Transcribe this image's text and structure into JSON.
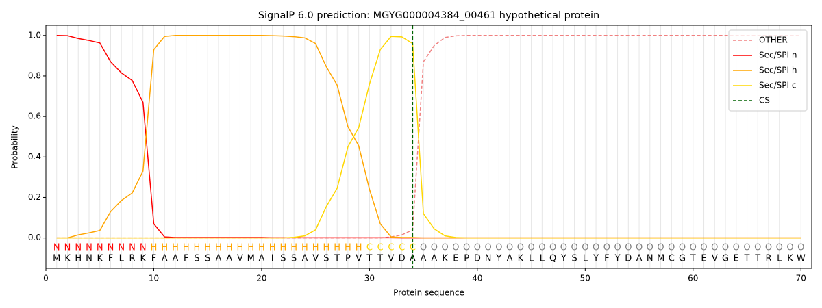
{
  "chart_data": {
    "type": "line",
    "title": "SignalP 6.0 prediction: MGYG000004384_00461 hypothetical protein",
    "xlabel": "Protein sequence",
    "ylabel": "Probability",
    "xlim": [
      0,
      71
    ],
    "ylim": [
      -0.15,
      1.05
    ],
    "xticks": [
      0,
      10,
      20,
      30,
      40,
      50,
      60,
      70
    ],
    "yticks": [
      {
        "value": 0,
        "label": "0.0"
      },
      0.2,
      0.4,
      0.6,
      0.8,
      {
        "value": 1,
        "label": "1.0"
      }
    ],
    "sequence": "MKHNKFLRKFAAFSSAAVMAISSAVSTPVTTVDAAAKEPDNYAKLLQYSLYFYDANMCGTEVGETTRLKW",
    "regions": "NNNNNNNNNHHHHHHHHHHHHHHHHHHHHCCCCCOOOOOOOOOOOOOOOOOOOOOOOOOOOOOOOOOOOO",
    "region_colors": {
      "N": "#ff0000",
      "H": "#ffa500",
      "C": "#ffd700",
      "O": "#808080"
    },
    "legend": "upper right",
    "x": [
      1,
      2,
      3,
      4,
      5,
      6,
      7,
      8,
      9,
      10,
      11,
      12,
      13,
      14,
      15,
      16,
      17,
      18,
      19,
      20,
      21,
      22,
      23,
      24,
      25,
      26,
      27,
      28,
      29,
      30,
      31,
      32,
      33,
      34,
      35,
      36,
      37,
      38,
      39,
      40,
      41,
      42,
      43,
      44,
      45,
      46,
      47,
      48,
      49,
      50,
      51,
      52,
      53,
      54,
      55,
      56,
      57,
      58,
      59,
      60,
      61,
      62,
      63,
      64,
      65,
      66,
      67,
      68,
      69,
      70
    ],
    "series": [
      {
        "name": "OTHER",
        "color": "#f08080",
        "dashed": true,
        "values": [
          0,
          0,
          0,
          0,
          0,
          0,
          0,
          0,
          0,
          0,
          0,
          0,
          0,
          0,
          0,
          0,
          0,
          0,
          0,
          0,
          0,
          0,
          0,
          0,
          0,
          0,
          0,
          0,
          0,
          0,
          0,
          0.005,
          0.015,
          0.04,
          0.87,
          0.95,
          0.99,
          0.998,
          1,
          1,
          1,
          1,
          1,
          1,
          1,
          1,
          1,
          1,
          1,
          1,
          1,
          1,
          1,
          1,
          1,
          1,
          1,
          1,
          1,
          1,
          1,
          1,
          1,
          1,
          1,
          1,
          1,
          1,
          1,
          1
        ]
      },
      {
        "name": "Sec/SPI n",
        "color": "#ff0000",
        "values": [
          1,
          0.999,
          0.985,
          0.975,
          0.963,
          0.87,
          0.815,
          0.778,
          0.67,
          0.07,
          0.005,
          0.002,
          0.002,
          0.002,
          0.002,
          0.002,
          0.002,
          0.002,
          0.002,
          0.002,
          0.001,
          0.001,
          0.001,
          0.001,
          0.001,
          0.001,
          0.001,
          0.001,
          0.001,
          0.001,
          0.001,
          0.001,
          0,
          0,
          0,
          0,
          0,
          0,
          0,
          0,
          0,
          0,
          0,
          0,
          0,
          0,
          0,
          0,
          0,
          0,
          0,
          0,
          0,
          0,
          0,
          0,
          0,
          0,
          0,
          0,
          0,
          0,
          0,
          0,
          0,
          0,
          0,
          0,
          0,
          0
        ]
      },
      {
        "name": "Sec/SPI h",
        "color": "#ffa500",
        "values": [
          0,
          0,
          0.015,
          0.025,
          0.037,
          0.13,
          0.185,
          0.222,
          0.33,
          0.93,
          0.995,
          1,
          1,
          1,
          1,
          1,
          1,
          1,
          1,
          1,
          0.999,
          0.997,
          0.994,
          0.988,
          0.96,
          0.845,
          0.755,
          0.55,
          0.455,
          0.24,
          0.07,
          0.005,
          0.002,
          0.002,
          0,
          0,
          0,
          0,
          0,
          0,
          0,
          0,
          0,
          0,
          0,
          0,
          0,
          0,
          0,
          0,
          0,
          0,
          0,
          0,
          0,
          0,
          0,
          0,
          0,
          0,
          0,
          0,
          0,
          0,
          0,
          0,
          0,
          0,
          0,
          0
        ]
      },
      {
        "name": "Sec/SPI c",
        "color": "#ffd700",
        "values": [
          0,
          0,
          0,
          0,
          0,
          0,
          0,
          0,
          0,
          0,
          0,
          0,
          0,
          0,
          0,
          0,
          0,
          0,
          0,
          0,
          0,
          0,
          0.003,
          0.01,
          0.04,
          0.155,
          0.245,
          0.45,
          0.545,
          0.76,
          0.93,
          0.995,
          0.993,
          0.96,
          0.12,
          0.045,
          0.01,
          0.002,
          0,
          0,
          0,
          0,
          0,
          0,
          0,
          0,
          0,
          0,
          0,
          0,
          0,
          0,
          0,
          0,
          0,
          0,
          0,
          0,
          0,
          0,
          0,
          0,
          0,
          0,
          0,
          0,
          0,
          0,
          0,
          0
        ]
      }
    ],
    "cs": {
      "name": "CS",
      "color": "#006400",
      "x": 34
    }
  }
}
